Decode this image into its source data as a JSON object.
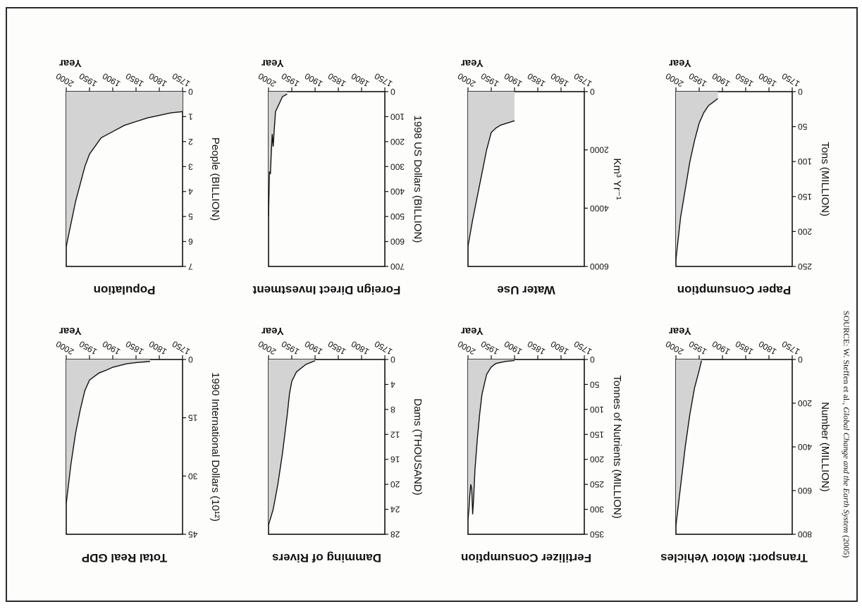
{
  "source": {
    "prefix": "SOURCE: W. Steffen et al., ",
    "italic": "Global Change and the Earth System",
    "suffix": " (2005)"
  },
  "chart_data": [
    {
      "type": "area",
      "title": "Population",
      "xlabel": "Year",
      "ylabel": "People (BILLION)",
      "xlim": [
        1750,
        2000
      ],
      "xticks": [
        1750,
        1800,
        1850,
        1900,
        1950,
        2000
      ],
      "ylim": [
        0,
        7
      ],
      "yticks": [
        0,
        1,
        2,
        3,
        4,
        5,
        6,
        7
      ],
      "x": [
        1750,
        1775,
        1800,
        1825,
        1850,
        1875,
        1900,
        1925,
        1950,
        1960,
        1970,
        1980,
        1990,
        2000
      ],
      "y": [
        0.8,
        0.85,
        0.95,
        1.05,
        1.2,
        1.35,
        1.6,
        1.85,
        2.5,
        3.0,
        3.7,
        4.4,
        5.3,
        6.2
      ]
    },
    {
      "type": "area",
      "title": "Total Real GDP",
      "xlabel": "Year",
      "ylabel": "1990 International Dollars (10¹²)",
      "xlim": [
        1750,
        2000
      ],
      "xticks": [
        1750,
        1800,
        1850,
        1900,
        1950,
        2000
      ],
      "ylim": [
        0,
        45
      ],
      "yticks": [
        0,
        15,
        30,
        45
      ],
      "x": [
        1820,
        1850,
        1870,
        1900,
        1913,
        1930,
        1950,
        1960,
        1970,
        1980,
        1990,
        2000
      ],
      "y": [
        0.5,
        0.8,
        1.1,
        2.0,
        2.7,
        3.5,
        5.3,
        8.0,
        13.0,
        19.0,
        27.0,
        37.0
      ]
    },
    {
      "type": "area",
      "title": "Foreign Direct Investment",
      "xlabel": "Year",
      "ylabel": "1998 US Dollars (BILLION)",
      "xlim": [
        1750,
        2000
      ],
      "xticks": [
        1750,
        1800,
        1850,
        1900,
        1950,
        2000
      ],
      "ylim": [
        0,
        700
      ],
      "yticks": [
        0,
        100,
        200,
        300,
        400,
        500,
        600,
        700
      ],
      "x": [
        1960,
        1970,
        1975,
        1980,
        1985,
        1988,
        1990,
        1992,
        1994,
        1996,
        1998,
        2000
      ],
      "y": [
        10,
        20,
        40,
        60,
        80,
        160,
        220,
        170,
        240,
        330,
        320,
        500
      ]
    },
    {
      "type": "area",
      "title": "Damming of Rivers",
      "xlabel": "Year",
      "ylabel": "Dams (THOUSAND)",
      "xlim": [
        1750,
        2000
      ],
      "xticks": [
        1750,
        1800,
        1850,
        1900,
        1950,
        2000
      ],
      "ylim": [
        0,
        28
      ],
      "yticks": [
        0,
        4,
        8,
        12,
        16,
        20,
        24,
        28
      ],
      "x": [
        1900,
        1920,
        1940,
        1950,
        1955,
        1960,
        1970,
        1980,
        1990,
        2000
      ],
      "y": [
        0.2,
        0.8,
        2.0,
        3.5,
        5.5,
        9.0,
        15.0,
        20.0,
        24.0,
        26.5
      ]
    },
    {
      "type": "area",
      "title": "Water Use",
      "xlabel": "Year",
      "ylabel": "Km³ Yr⁻¹",
      "xlim": [
        1750,
        2000
      ],
      "xticks": [
        1750,
        1800,
        1850,
        1900,
        1950,
        2000
      ],
      "ylim": [
        0,
        6000
      ],
      "yticks": [
        0,
        2000,
        4000,
        6000
      ],
      "x": [
        1900,
        1910,
        1920,
        1930,
        1940,
        1950,
        1960,
        1970,
        1980,
        1990,
        2000
      ],
      "y": [
        1000,
        1050,
        1100,
        1150,
        1250,
        1400,
        2000,
        2800,
        3600,
        4400,
        5300
      ]
    },
    {
      "type": "area",
      "title": "Fertilizer Consumption",
      "xlabel": "Year",
      "ylabel": "Tonnes of Nutrients (MILLION)",
      "xlim": [
        1750,
        2000
      ],
      "xticks": [
        1750,
        1800,
        1850,
        1900,
        1950,
        2000
      ],
      "ylim": [
        0,
        350
      ],
      "yticks": [
        0,
        50,
        100,
        150,
        200,
        250,
        300,
        350
      ],
      "x": [
        1900,
        1920,
        1940,
        1950,
        1960,
        1970,
        1975,
        1980,
        1985,
        1988,
        1990,
        1992,
        1994,
        1996,
        1998,
        2000
      ],
      "y": [
        2,
        4,
        8,
        15,
        30,
        70,
        110,
        160,
        220,
        280,
        310,
        260,
        250,
        270,
        300,
        320
      ]
    },
    {
      "type": "area",
      "title": "Paper Consumption",
      "xlabel": "Year",
      "ylabel": "Tons (MILLION)",
      "xlim": [
        1750,
        2000
      ],
      "xticks": [
        1750,
        1800,
        1850,
        1900,
        1950,
        2000
      ],
      "ylim": [
        0,
        250
      ],
      "yticks": [
        0,
        50,
        100,
        150,
        200,
        250
      ],
      "x": [
        1910,
        1920,
        1930,
        1940,
        1950,
        1960,
        1970,
        1975,
        1980,
        1985,
        1990,
        1995,
        2000
      ],
      "y": [
        10,
        15,
        20,
        30,
        45,
        70,
        100,
        120,
        140,
        160,
        180,
        210,
        240
      ]
    },
    {
      "type": "area",
      "title": "Transport: Motor Vehicles",
      "xlabel": "Year",
      "ylabel": "Number (MILLION)",
      "xlim": [
        1750,
        2000
      ],
      "xticks": [
        1750,
        1800,
        1850,
        1900,
        1950,
        2000
      ],
      "ylim": [
        0,
        800
      ],
      "yticks": [
        0,
        200,
        400,
        600,
        800
      ],
      "x": [
        1945,
        1950,
        1960,
        1970,
        1980,
        1990,
        2000
      ],
      "y": [
        5,
        50,
        130,
        250,
        400,
        580,
        760
      ]
    }
  ]
}
